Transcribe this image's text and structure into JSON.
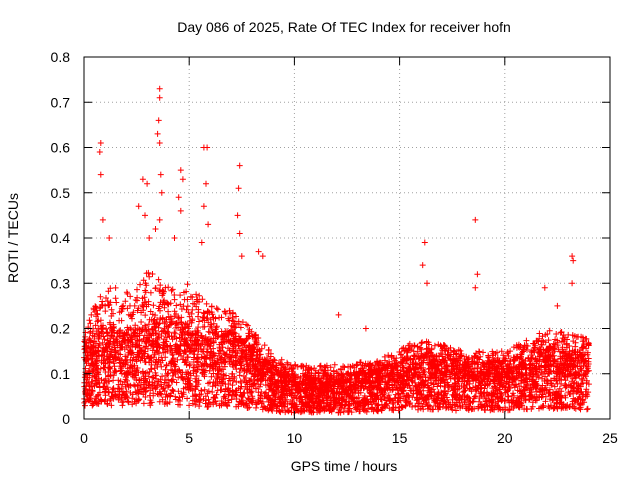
{
  "chart_data": {
    "type": "scatter",
    "title": "Day 086 of 2025, Rate Of TEC Index for receiver hofn",
    "xlabel": "GPS time / hours",
    "ylabel": "ROTI / TECUs",
    "xlim": [
      0,
      25
    ],
    "ylim": [
      0,
      0.8
    ],
    "xticks": [
      0,
      5,
      10,
      15,
      20,
      25
    ],
    "yticks": [
      0,
      0.1,
      0.2,
      0.3,
      0.4,
      0.5,
      0.6,
      0.7,
      0.8
    ],
    "xtick_labels": [
      "0",
      "5",
      "10",
      "15",
      "20",
      "25"
    ],
    "ytick_labels": [
      "0",
      "0.1",
      "0.2",
      "0.3",
      "0.4",
      "0.5",
      "0.6",
      "0.7",
      "0.8"
    ],
    "grid": true,
    "marker": "+",
    "color": "#ff0000",
    "x_range_of_data": [
      0,
      24
    ],
    "envelope": [
      {
        "x": 0.0,
        "median": 0.11,
        "upper": 0.2
      },
      {
        "x": 1.0,
        "median": 0.13,
        "upper": 0.3
      },
      {
        "x": 2.0,
        "median": 0.12,
        "upper": 0.28
      },
      {
        "x": 3.0,
        "median": 0.13,
        "upper": 0.33
      },
      {
        "x": 4.0,
        "median": 0.14,
        "upper": 0.3
      },
      {
        "x": 5.0,
        "median": 0.13,
        "upper": 0.3
      },
      {
        "x": 6.0,
        "median": 0.11,
        "upper": 0.25
      },
      {
        "x": 7.0,
        "median": 0.12,
        "upper": 0.24
      },
      {
        "x": 8.0,
        "median": 0.1,
        "upper": 0.2
      },
      {
        "x": 9.0,
        "median": 0.07,
        "upper": 0.14
      },
      {
        "x": 10.0,
        "median": 0.06,
        "upper": 0.12
      },
      {
        "x": 12.0,
        "median": 0.06,
        "upper": 0.12
      },
      {
        "x": 14.0,
        "median": 0.07,
        "upper": 0.13
      },
      {
        "x": 16.0,
        "median": 0.09,
        "upper": 0.18
      },
      {
        "x": 18.0,
        "median": 0.08,
        "upper": 0.15
      },
      {
        "x": 20.0,
        "median": 0.08,
        "upper": 0.15
      },
      {
        "x": 22.0,
        "median": 0.1,
        "upper": 0.2
      },
      {
        "x": 24.0,
        "median": 0.09,
        "upper": 0.18
      }
    ],
    "spikes": [
      {
        "x": 0.8,
        "y": 0.61
      },
      {
        "x": 0.75,
        "y": 0.59
      },
      {
        "x": 0.8,
        "y": 0.54
      },
      {
        "x": 0.9,
        "y": 0.44
      },
      {
        "x": 1.2,
        "y": 0.4
      },
      {
        "x": 2.6,
        "y": 0.47
      },
      {
        "x": 2.8,
        "y": 0.53
      },
      {
        "x": 3.0,
        "y": 0.52
      },
      {
        "x": 2.9,
        "y": 0.45
      },
      {
        "x": 3.1,
        "y": 0.4
      },
      {
        "x": 3.6,
        "y": 0.73
      },
      {
        "x": 3.6,
        "y": 0.71
      },
      {
        "x": 3.55,
        "y": 0.66
      },
      {
        "x": 3.5,
        "y": 0.63
      },
      {
        "x": 3.6,
        "y": 0.61
      },
      {
        "x": 3.65,
        "y": 0.54
      },
      {
        "x": 3.7,
        "y": 0.5
      },
      {
        "x": 3.6,
        "y": 0.44
      },
      {
        "x": 3.4,
        "y": 0.42
      },
      {
        "x": 4.6,
        "y": 0.55
      },
      {
        "x": 4.7,
        "y": 0.53
      },
      {
        "x": 4.5,
        "y": 0.49
      },
      {
        "x": 4.6,
        "y": 0.46
      },
      {
        "x": 4.3,
        "y": 0.4
      },
      {
        "x": 5.7,
        "y": 0.6
      },
      {
        "x": 5.85,
        "y": 0.6
      },
      {
        "x": 5.8,
        "y": 0.52
      },
      {
        "x": 5.7,
        "y": 0.47
      },
      {
        "x": 5.9,
        "y": 0.43
      },
      {
        "x": 5.6,
        "y": 0.39
      },
      {
        "x": 7.4,
        "y": 0.56
      },
      {
        "x": 7.35,
        "y": 0.51
      },
      {
        "x": 7.3,
        "y": 0.45
      },
      {
        "x": 7.4,
        "y": 0.41
      },
      {
        "x": 7.5,
        "y": 0.36
      },
      {
        "x": 8.3,
        "y": 0.37
      },
      {
        "x": 8.5,
        "y": 0.36
      },
      {
        "x": 12.1,
        "y": 0.23
      },
      {
        "x": 13.4,
        "y": 0.2
      },
      {
        "x": 16.2,
        "y": 0.39
      },
      {
        "x": 16.1,
        "y": 0.34
      },
      {
        "x": 16.3,
        "y": 0.3
      },
      {
        "x": 18.6,
        "y": 0.44
      },
      {
        "x": 18.7,
        "y": 0.32
      },
      {
        "x": 18.6,
        "y": 0.29
      },
      {
        "x": 23.2,
        "y": 0.36
      },
      {
        "x": 23.25,
        "y": 0.35
      },
      {
        "x": 23.2,
        "y": 0.3
      },
      {
        "x": 21.9,
        "y": 0.29
      },
      {
        "x": 22.5,
        "y": 0.25
      }
    ]
  }
}
